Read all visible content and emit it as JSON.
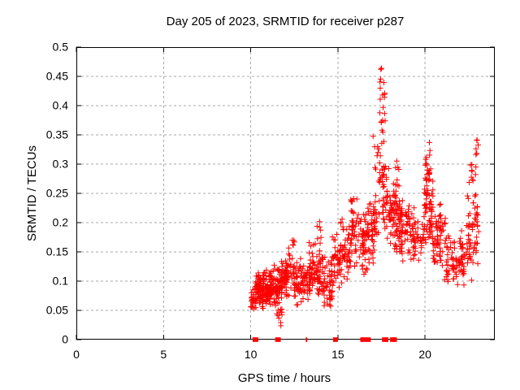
{
  "page": {
    "background": "#ffffff"
  },
  "chart_data": {
    "type": "scatter",
    "title": "Day 205 of 2023, SRMTID for receiver p287",
    "xlabel": "GPS time / hours",
    "ylabel": "SRMTID / TECUs",
    "xlim": [
      0,
      24
    ],
    "ylim": [
      0,
      0.5
    ],
    "xticks": [
      0,
      5,
      10,
      15,
      20
    ],
    "xtick_labels": [
      "0",
      "5",
      "10",
      "15",
      "20"
    ],
    "yticks": [
      0,
      0.05,
      0.1,
      0.15,
      0.2,
      0.25,
      0.3,
      0.35,
      0.4,
      0.45,
      0.5
    ],
    "ytick_labels": [
      "0",
      "0.05",
      "0.1",
      "0.15",
      "0.2",
      "0.25",
      "0.3",
      "0.35",
      "0.4",
      "0.45",
      "0.5"
    ],
    "grid": true,
    "grid_style": "dashed",
    "grid_color": "#a9a9a9",
    "axis_color": "#000000",
    "marker": "plus",
    "marker_color": "#ff0000",
    "marker_size_px": 7,
    "legend": null,
    "data_extent_hours": [
      10.0,
      23.1
    ],
    "value_extent_tecus": [
      0.0,
      0.465
    ],
    "peak": {
      "hour": 17.5,
      "value": 0.46
    },
    "clusters": [
      [
        10.0,
        10.3,
        22,
        0.045,
        0.1,
        "m"
      ],
      [
        10.25,
        10.75,
        75,
        0.05,
        0.125,
        "m"
      ],
      [
        10.7,
        11.15,
        60,
        0.055,
        0.125,
        "m"
      ],
      [
        11.1,
        11.55,
        60,
        0.05,
        0.13,
        "m"
      ],
      [
        11.4,
        11.85,
        12,
        0.018,
        0.055,
        "u"
      ],
      [
        11.5,
        12.05,
        65,
        0.06,
        0.14,
        "m"
      ],
      [
        12.0,
        12.5,
        45,
        0.065,
        0.165,
        "m"
      ],
      [
        12.35,
        12.5,
        5,
        0.15,
        0.19,
        "u"
      ],
      [
        12.5,
        13.05,
        50,
        0.055,
        0.145,
        "m"
      ],
      [
        13.0,
        13.4,
        28,
        0.06,
        0.13,
        "m"
      ],
      [
        13.35,
        14.15,
        80,
        0.075,
        0.175,
        "m"
      ],
      [
        13.8,
        14.1,
        7,
        0.165,
        0.21,
        "u"
      ],
      [
        14.15,
        14.7,
        40,
        0.04,
        0.15,
        "m"
      ],
      [
        14.6,
        15.15,
        48,
        0.07,
        0.19,
        "m"
      ],
      [
        15.1,
        15.75,
        52,
        0.09,
        0.22,
        "m"
      ],
      [
        15.7,
        16.25,
        45,
        0.1,
        0.265,
        "m"
      ],
      [
        16.2,
        16.75,
        50,
        0.1,
        0.23,
        "m"
      ],
      [
        16.7,
        17.15,
        40,
        0.12,
        0.25,
        "m"
      ],
      [
        17.0,
        17.4,
        28,
        0.17,
        0.35,
        "u"
      ],
      [
        17.35,
        17.72,
        18,
        0.37,
        0.465,
        "u"
      ],
      [
        17.3,
        17.8,
        15,
        0.27,
        0.37,
        "u"
      ],
      [
        17.55,
        18.05,
        45,
        0.16,
        0.33,
        "m"
      ],
      [
        18.0,
        18.7,
        85,
        0.14,
        0.27,
        "m"
      ],
      [
        18.3,
        18.55,
        7,
        0.26,
        0.31,
        "u"
      ],
      [
        18.65,
        19.4,
        55,
        0.12,
        0.26,
        "m"
      ],
      [
        19.35,
        19.95,
        32,
        0.13,
        0.22,
        "m"
      ],
      [
        19.95,
        20.45,
        55,
        0.15,
        0.3,
        "m"
      ],
      [
        20.0,
        20.4,
        22,
        0.24,
        0.35,
        "u"
      ],
      [
        20.4,
        21.25,
        70,
        0.1,
        0.24,
        "m"
      ],
      [
        21.2,
        22.3,
        75,
        0.08,
        0.19,
        "m"
      ],
      [
        22.35,
        23.1,
        60,
        0.1,
        0.27,
        "m"
      ],
      [
        22.5,
        23.0,
        12,
        0.265,
        0.32,
        "u"
      ],
      [
        22.85,
        23.05,
        4,
        0.32,
        0.345,
        "u"
      ]
    ],
    "zero_markers": [
      [
        10.27,
        7
      ],
      [
        11.56,
        7
      ],
      [
        13.2,
        2
      ],
      [
        14.86,
        6
      ],
      [
        16.33,
        2
      ],
      [
        16.41,
        2
      ],
      [
        16.52,
        5
      ],
      [
        16.76,
        5.5
      ],
      [
        17.66,
        5.5
      ],
      [
        17.8,
        4
      ],
      [
        18.12,
        5.5
      ],
      [
        18.27,
        5
      ]
    ]
  }
}
